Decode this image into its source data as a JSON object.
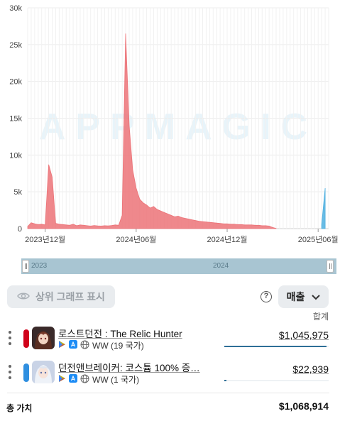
{
  "chart_data": {
    "type": "area",
    "y_ticks": [
      "30k",
      "25k",
      "20k",
      "15k",
      "10k",
      "5k",
      "0"
    ],
    "y_tick_values": [
      30000,
      25000,
      20000,
      15000,
      10000,
      5000,
      0
    ],
    "ylim": [
      0,
      30000
    ],
    "x_ticks": [
      "2023년12월",
      "2024년06월",
      "2024년12월",
      "2025년06월"
    ],
    "x_tick_weeks": [
      5,
      31,
      57,
      83
    ],
    "grid": true,
    "watermark": "APPMAGIC",
    "series": [
      {
        "color": "#ec7378",
        "weeks_start": 0,
        "values": [
          300,
          800,
          650,
          550,
          600,
          500,
          8700,
          7000,
          700,
          600,
          550,
          500,
          450,
          600,
          400,
          500,
          450,
          400,
          350,
          420,
          380,
          350,
          400,
          380,
          420,
          500,
          450,
          1800,
          26500,
          14000,
          8000,
          5500,
          4000,
          3500,
          3200,
          2800,
          3000,
          2600,
          2400,
          2200,
          2000,
          1800,
          1600,
          1700,
          1500,
          1400,
          1300,
          1200,
          1100,
          1000,
          950,
          900,
          850,
          800,
          750,
          700,
          650,
          650,
          600,
          600,
          550,
          550,
          500,
          500,
          500,
          450,
          450,
          400,
          400,
          350,
          150,
          30
        ]
      },
      {
        "color": "#4fb0e0",
        "weeks_start": 84,
        "values": [
          500,
          5500
        ]
      }
    ]
  },
  "range_selector": {
    "labels": [
      "2023",
      "2024"
    ]
  },
  "controls": {
    "show_top_graph_label": "상위 그래프 표시",
    "help_glyph": "?",
    "metric_label": "매출",
    "sum_label": "합계"
  },
  "apps": [
    {
      "color": "#d0021b",
      "title": "로스트던전 : The Relic Hunter",
      "region": "WW (19 국가)",
      "value": "$1,045,975",
      "share": 0.979
    },
    {
      "color": "#2f8fe0",
      "title": "던전앤브레이커: 코스튬 100% 증…",
      "region": "WW (1 국가)",
      "value": "$22,939",
      "share": 0.021
    }
  ],
  "total": {
    "label": "총 가치",
    "value": "$1,068,914"
  }
}
